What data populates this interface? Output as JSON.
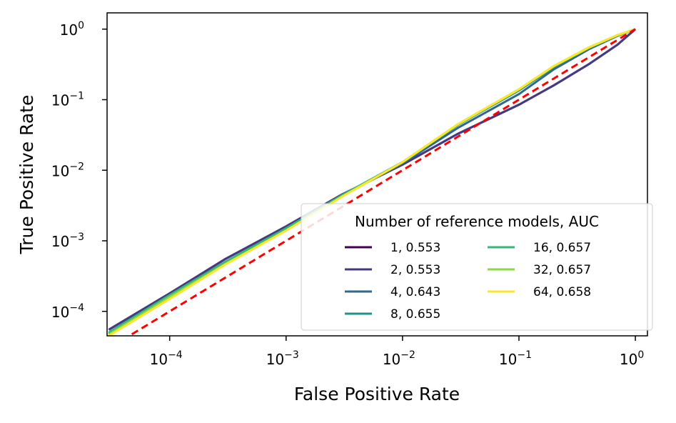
{
  "chart_data": {
    "type": "line",
    "log_x": true,
    "log_y": true,
    "x_label": "False Positive Rate",
    "y_label": "True Positive Rate",
    "xlim": [
      2.9e-05,
      1.27
    ],
    "ylim": [
      4.5e-05,
      1.7
    ],
    "xticks": [
      {
        "value": 0.0001,
        "label": "10^−4"
      },
      {
        "value": 0.001,
        "label": "10^−3"
      },
      {
        "value": 0.01,
        "label": "10^−2"
      },
      {
        "value": 0.1,
        "label": "10^−1"
      },
      {
        "value": 1,
        "label": "10^0"
      }
    ],
    "yticks": [
      {
        "value": 0.0001,
        "label": "10^−4"
      },
      {
        "value": 0.001,
        "label": "10^−3"
      },
      {
        "value": 0.01,
        "label": "10^−2"
      },
      {
        "value": 0.1,
        "label": "10^−1"
      },
      {
        "value": 1,
        "label": "10^0"
      }
    ],
    "legend_title": "Number of reference models, AUC",
    "legend_position": "lower right",
    "x": [
      3e-05,
      0.0001,
      0.0003,
      0.001,
      0.003,
      0.01,
      0.03,
      0.1,
      0.2,
      0.4,
      0.7,
      1
    ],
    "series": [
      {
        "name": "1, 0.553",
        "color": "#440154",
        "values": [
          5.5e-05,
          0.00018,
          0.00055,
          0.0016,
          0.0045,
          0.012,
          0.033,
          0.085,
          0.16,
          0.32,
          0.6,
          1
        ]
      },
      {
        "name": "2, 0.553",
        "color": "#443a83",
        "values": [
          5.5e-05,
          0.00018,
          0.00055,
          0.0016,
          0.0045,
          0.012,
          0.033,
          0.085,
          0.16,
          0.32,
          0.6,
          1
        ]
      },
      {
        "name": "4, 0.643",
        "color": "#31688e",
        "values": [
          4.8e-05,
          0.00016,
          0.00048,
          0.00145,
          0.0043,
          0.0125,
          0.04,
          0.12,
          0.27,
          0.52,
          0.8,
          1
        ]
      },
      {
        "name": "8, 0.655",
        "color": "#21918c",
        "values": [
          5e-05,
          0.00017,
          0.0005,
          0.0015,
          0.0044,
          0.013,
          0.044,
          0.135,
          0.29,
          0.54,
          0.81,
          1
        ]
      },
      {
        "name": "16, 0.657",
        "color": "#35b779",
        "values": [
          5e-05,
          0.00017,
          0.0005,
          0.0015,
          0.0044,
          0.013,
          0.045,
          0.14,
          0.3,
          0.55,
          0.82,
          1
        ]
      },
      {
        "name": "32, 0.657",
        "color": "#8fd744",
        "values": [
          4.7e-05,
          0.00016,
          0.00047,
          0.0014,
          0.0042,
          0.013,
          0.045,
          0.14,
          0.3,
          0.55,
          0.82,
          1
        ]
      },
      {
        "name": "64, 0.658",
        "color": "#fde725",
        "values": [
          4.5e-05,
          0.00015,
          0.00046,
          0.0014,
          0.0042,
          0.013,
          0.045,
          0.14,
          0.3,
          0.55,
          0.82,
          1
        ]
      }
    ],
    "reference_line": {
      "color": "#ff0000",
      "dashed": true,
      "x": [
        3.9e-05,
        1
      ],
      "values": [
        3.9e-05,
        1
      ]
    }
  }
}
